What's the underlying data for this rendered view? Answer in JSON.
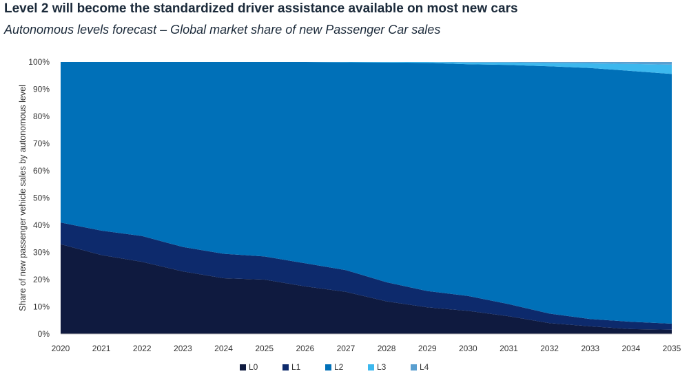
{
  "title": "Level 2 will become the standardized driver assistance available on most new cars",
  "subtitle": "Autonomous levels forecast – Global market share of new Passenger Car sales",
  "chart_data": {
    "type": "area",
    "stacked": true,
    "x": [
      "2020",
      "2021",
      "2022",
      "2023",
      "2024",
      "2025",
      "2026",
      "2027",
      "2028",
      "2029",
      "2030",
      "2031",
      "2032",
      "2033",
      "2034",
      "2035"
    ],
    "ylabel": "Share of new passenger vehicle sales by autonomous level",
    "ylim": [
      0,
      100
    ],
    "yticks": [
      "0%",
      "10%",
      "20%",
      "30%",
      "40%",
      "50%",
      "60%",
      "70%",
      "80%",
      "90%",
      "100%"
    ],
    "legend_position": "bottom",
    "series": [
      {
        "name": "L0",
        "color": "#0f1a3f",
        "values": [
          33,
          29,
          26.5,
          23,
          20.5,
          20,
          17.5,
          15.5,
          12,
          9.8,
          8.5,
          6.5,
          4,
          2.8,
          1.8,
          1.6
        ]
      },
      {
        "name": "L1",
        "color": "#0d2a6c",
        "values": [
          8,
          9,
          9.5,
          9,
          9,
          8.5,
          8.5,
          8,
          7,
          6,
          5.5,
          4.5,
          3.5,
          2.7,
          2.7,
          2.2
        ]
      },
      {
        "name": "L2",
        "color": "#0070b8",
        "values": [
          59,
          62,
          64,
          68,
          70.5,
          71.5,
          74,
          76.4,
          80.8,
          83.9,
          85.2,
          87.9,
          90.9,
          92.3,
          92.2,
          91.8
        ]
      },
      {
        "name": "L3",
        "color": "#3cb8ee",
        "values": [
          0,
          0,
          0,
          0,
          0,
          0,
          0,
          0.1,
          0.2,
          0.3,
          0.6,
          0.9,
          1.2,
          1.7,
          2.6,
          3.4
        ]
      },
      {
        "name": "L4",
        "color": "#5a9fd0",
        "values": [
          0,
          0,
          0,
          0,
          0,
          0,
          0,
          0,
          0,
          0,
          0.2,
          0.2,
          0.4,
          0.5,
          0.7,
          1.0
        ]
      }
    ]
  }
}
